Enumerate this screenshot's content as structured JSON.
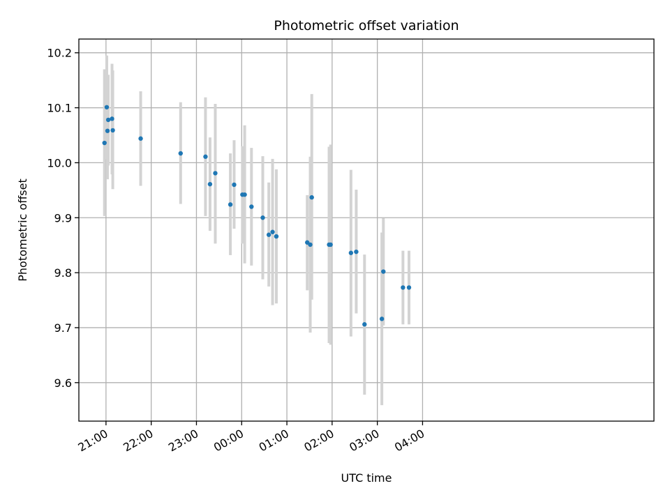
{
  "chart_data": {
    "type": "scatter",
    "title": "Photometric offset variation",
    "xlabel": "UTC time",
    "ylabel": "Photometric offset",
    "xlim_minutes": [
      1224,
      1987
    ],
    "ylim": [
      9.53,
      10.225
    ],
    "grid": true,
    "colors": {
      "point": "#1f77b4",
      "errorbar": "#d3d3d3",
      "grid": "#b0b0b0"
    },
    "x_ticks": [
      {
        "minutes": 1260,
        "label": "21:00"
      },
      {
        "minutes": 1320,
        "label": "22:00"
      },
      {
        "minutes": 1380,
        "label": "23:00"
      },
      {
        "minutes": 1440,
        "label": "00:00"
      },
      {
        "minutes": 1500,
        "label": "01:00"
      },
      {
        "minutes": 1560,
        "label": "02:00"
      },
      {
        "minutes": 1620,
        "label": "03:00"
      },
      {
        "minutes": 1680,
        "label": "04:00"
      }
    ],
    "y_ticks": [
      {
        "value": 9.6,
        "label": "9.6"
      },
      {
        "value": 9.7,
        "label": "9.7"
      },
      {
        "value": 9.8,
        "label": "9.8"
      },
      {
        "value": 9.9,
        "label": "9.9"
      },
      {
        "value": 10.0,
        "label": "10.0"
      },
      {
        "value": 10.1,
        "label": "10.1"
      },
      {
        "value": 10.2,
        "label": "10.2"
      }
    ],
    "points": [
      {
        "t": "20:58",
        "y": 10.036,
        "lo": 9.903,
        "hi": 10.17
      },
      {
        "t": "21:01",
        "y": 10.101,
        "lo": 10.006,
        "hi": 10.195
      },
      {
        "t": "21:02",
        "y": 10.058,
        "lo": 9.97,
        "hi": 10.145
      },
      {
        "t": "21:03",
        "y": 10.078,
        "lo": 9.995,
        "hi": 10.16
      },
      {
        "t": "21:08",
        "y": 10.08,
        "lo": 9.979,
        "hi": 10.18
      },
      {
        "t": "21:09",
        "y": 10.059,
        "lo": 9.952,
        "hi": 10.168
      },
      {
        "t": "21:46",
        "y": 10.044,
        "lo": 9.958,
        "hi": 10.13
      },
      {
        "t": "22:39",
        "y": 10.017,
        "lo": 9.925,
        "hi": 10.11
      },
      {
        "t": "23:12",
        "y": 10.011,
        "lo": 9.903,
        "hi": 10.119
      },
      {
        "t": "23:18",
        "y": 9.961,
        "lo": 9.876,
        "hi": 10.046
      },
      {
        "t": "23:25",
        "y": 9.981,
        "lo": 9.853,
        "hi": 10.107
      },
      {
        "t": "23:45",
        "y": 9.924,
        "lo": 9.832,
        "hi": 10.017
      },
      {
        "t": "23:50",
        "y": 9.96,
        "lo": 9.88,
        "hi": 10.041
      },
      {
        "t": "00:01",
        "y": 9.942,
        "lo": 9.853,
        "hi": 10.03
      },
      {
        "t": "00:04",
        "y": 9.942,
        "lo": 9.817,
        "hi": 10.068
      },
      {
        "t": "00:13",
        "y": 9.92,
        "lo": 9.813,
        "hi": 10.027
      },
      {
        "t": "00:28",
        "y": 9.9,
        "lo": 9.788,
        "hi": 10.012
      },
      {
        "t": "00:36",
        "y": 9.869,
        "lo": 9.775,
        "hi": 9.964
      },
      {
        "t": "00:41",
        "y": 9.874,
        "lo": 9.741,
        "hi": 10.007
      },
      {
        "t": "00:46",
        "y": 9.866,
        "lo": 9.744,
        "hi": 9.988
      },
      {
        "t": "01:27",
        "y": 9.855,
        "lo": 9.768,
        "hi": 9.941
      },
      {
        "t": "01:31",
        "y": 9.851,
        "lo": 9.691,
        "hi": 10.011
      },
      {
        "t": "01:33",
        "y": 9.937,
        "lo": 9.751,
        "hi": 10.125
      },
      {
        "t": "01:56",
        "y": 9.851,
        "lo": 9.672,
        "hi": 10.029
      },
      {
        "t": "01:58",
        "y": 9.851,
        "lo": 9.669,
        "hi": 10.033
      },
      {
        "t": "02:25",
        "y": 9.836,
        "lo": 9.684,
        "hi": 9.987
      },
      {
        "t": "02:32",
        "y": 9.838,
        "lo": 9.726,
        "hi": 9.951
      },
      {
        "t": "02:43",
        "y": 9.706,
        "lo": 9.578,
        "hi": 9.833
      },
      {
        "t": "03:06",
        "y": 9.716,
        "lo": 9.559,
        "hi": 9.873
      },
      {
        "t": "03:08",
        "y": 9.802,
        "lo": 9.704,
        "hi": 9.899
      },
      {
        "t": "03:34",
        "y": 9.773,
        "lo": 9.706,
        "hi": 9.84
      },
      {
        "t": "03:42",
        "y": 9.773,
        "lo": 9.706,
        "hi": 9.84
      }
    ]
  }
}
